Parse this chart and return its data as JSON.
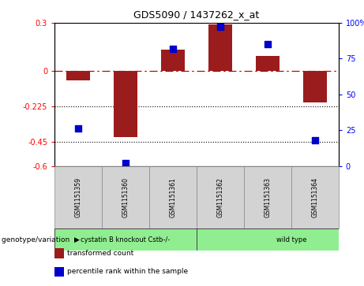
{
  "title": "GDS5090 / 1437262_x_at",
  "samples": [
    "GSM1151359",
    "GSM1151360",
    "GSM1151361",
    "GSM1151362",
    "GSM1151363",
    "GSM1151364"
  ],
  "transformed_count": [
    -0.06,
    -0.42,
    0.13,
    0.29,
    0.09,
    -0.2
  ],
  "percentile_rank": [
    26,
    2,
    82,
    97,
    85,
    18
  ],
  "ylim_left": [
    -0.6,
    0.3
  ],
  "ylim_right": [
    0,
    100
  ],
  "yticks_left": [
    0.3,
    0,
    -0.225,
    -0.45,
    -0.6
  ],
  "ytick_labels_left": [
    "0.3",
    "0",
    "-0.225",
    "-0.45",
    "-0.6"
  ],
  "yticks_right": [
    100,
    75,
    50,
    25,
    0
  ],
  "ytick_labels_right": [
    "100%",
    "75",
    "50",
    "25",
    "0"
  ],
  "hlines_y": [
    0,
    -0.225,
    -0.45
  ],
  "bar_color": "#9B1C1C",
  "dot_color": "#0000CC",
  "group1_label": "cystatin B knockout Cstb-/-",
  "group2_label": "wild type",
  "group_color": "#90EE90",
  "sample_box_color": "#D3D3D3",
  "geno_label": "genotype/variation",
  "legend_items": [
    {
      "color": "#9B1C1C",
      "label": "transformed count"
    },
    {
      "color": "#0000CC",
      "label": "percentile rank within the sample"
    }
  ],
  "bg_color": "#FFFFFF",
  "bar_width": 0.5,
  "dot_size": 40,
  "figsize": [
    4.61,
    3.63
  ],
  "dpi": 100
}
